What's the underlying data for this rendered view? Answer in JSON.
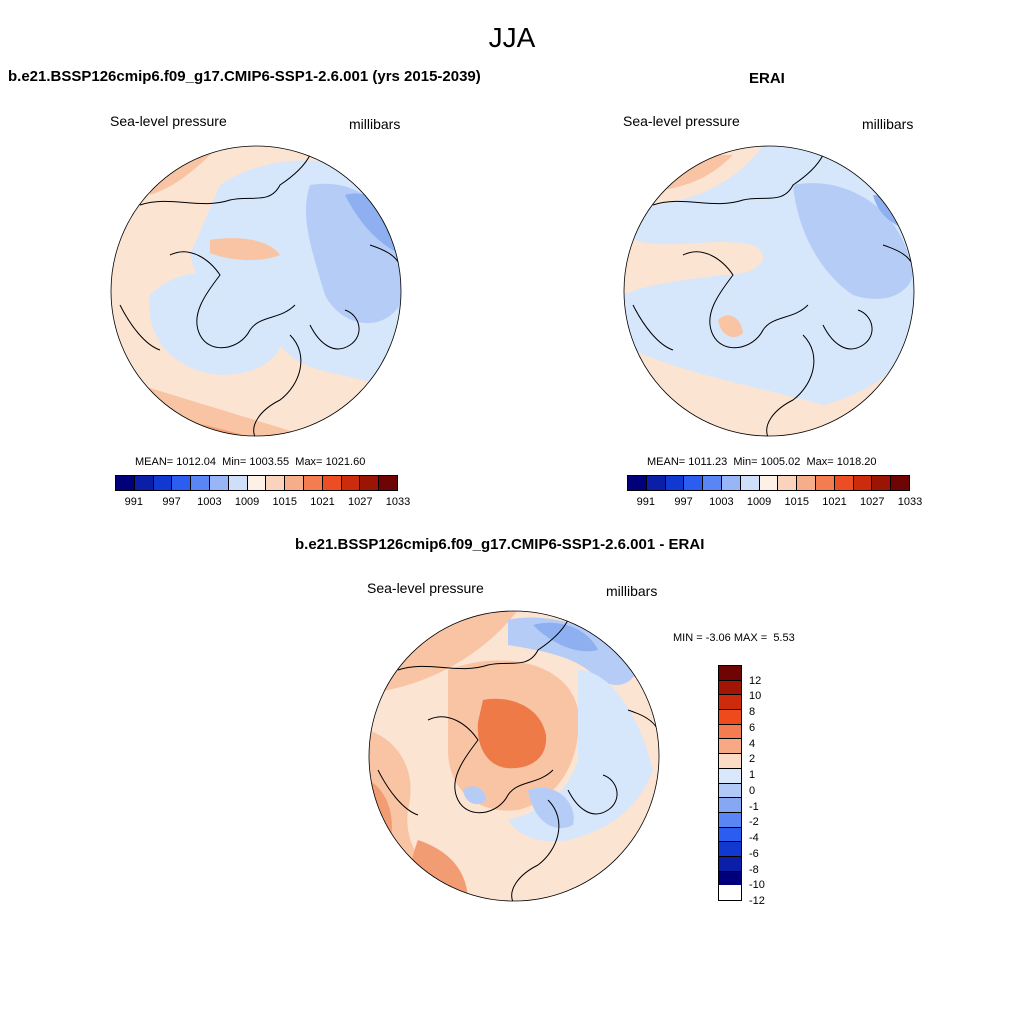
{
  "title": "JJA",
  "panels": {
    "model": {
      "title": "b.e21.BSSP126cmip6.f09_g17.CMIP6-SSP1-2.6.001 (yrs 2015-2039)",
      "variable": "Sea-level pressure",
      "units": "millibars",
      "mean_label": "MEAN=",
      "mean": "1012.04",
      "min_label": "Min=",
      "min": "1003.55",
      "max_label": "Max=",
      "max": "1021.60"
    },
    "obs": {
      "title": "ERAI",
      "variable": "Sea-level pressure",
      "units": "millibars",
      "mean_label": "MEAN=",
      "mean": "1011.23",
      "min_label": "Min=",
      "min": "1005.02",
      "max_label": "Max=",
      "max": "1018.20"
    },
    "diff": {
      "title": "b.e21.BSSP126cmip6.f09_g17.CMIP6-SSP1-2.6.001 - ERAI",
      "variable": "Sea-level pressure",
      "units": "millibars",
      "min_label": "MIN =",
      "min": "-3.06",
      "max_label": "MAX =",
      "max": "5.53"
    }
  },
  "colorbar_abs": {
    "colors": [
      "#00007a",
      "#0a1ea8",
      "#1238d2",
      "#2b5df0",
      "#5a86f5",
      "#98b6f7",
      "#cfdffa",
      "#fdf0e4",
      "#f9d3bb",
      "#f6ad8a",
      "#f47c51",
      "#ec4d22",
      "#cc2b0c",
      "#9c1404",
      "#6e0404"
    ],
    "ticks": [
      "991",
      "997",
      "1003",
      "1009",
      "1015",
      "1021",
      "1027",
      "1033"
    ]
  },
  "colorbar_diff": {
    "colors": [
      "#6e0404",
      "#a11504",
      "#cc2b0c",
      "#ee4a1c",
      "#f47c51",
      "#f7a884",
      "#fcdcc5",
      "#d9e7fb",
      "#b0c9f7",
      "#86a8f3",
      "#5a86f5",
      "#2b5df0",
      "#1238d2",
      "#0a1ea8",
      "#00007a"
    ],
    "ticks": [
      "12",
      "10",
      "8",
      "6",
      "4",
      "2",
      "1",
      "0",
      "-1",
      "-2",
      "-4",
      "-6",
      "-8",
      "-10",
      "-12"
    ]
  },
  "map_colors": {
    "neutral_warm": "#fce4d3",
    "warm": "#f8c4a4",
    "warmer": "#f29c74",
    "hot": "#ee7a48",
    "neutral_cool": "#d6e6fb",
    "cool": "#b4ccf6",
    "cooler": "#8eb0f1"
  }
}
